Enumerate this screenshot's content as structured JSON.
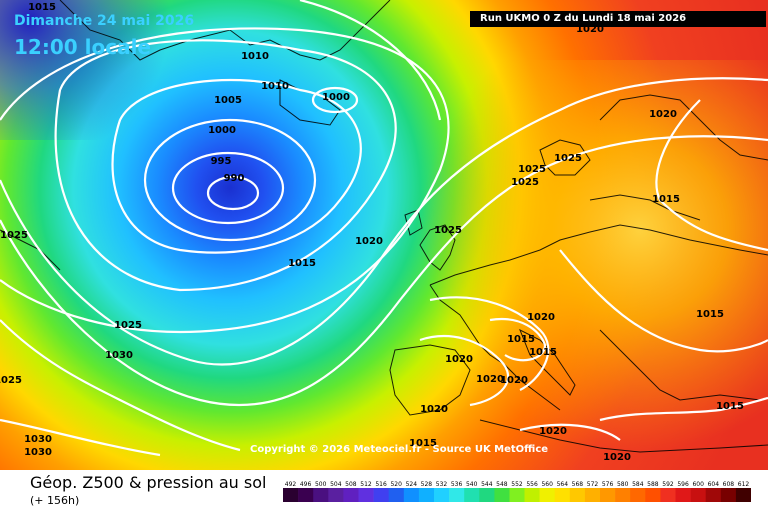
{
  "header": {
    "date": "Dimanche 24 mai 2026",
    "time": "12:00 locale",
    "run": "Run UKMO 0 Z du Lundi 18 mai 2026"
  },
  "copyright": "Copyright © 2026 Meteociel.fr - Source UK MetOffice",
  "footer": {
    "title": "Géop. Z500 & pression au sol",
    "subtitle": "(+ 156h)"
  },
  "scale": {
    "values": [
      492,
      496,
      500,
      504,
      508,
      512,
      516,
      520,
      524,
      528,
      532,
      536,
      540,
      544,
      548,
      552,
      556,
      560,
      564,
      568,
      572,
      576,
      580,
      584,
      588,
      592,
      596,
      600,
      604,
      608,
      612
    ],
    "colors": [
      "#2a0030",
      "#3a0050",
      "#4a1080",
      "#5a20a0",
      "#6020c0",
      "#6030e0",
      "#4040f0",
      "#2060f0",
      "#1090ff",
      "#10b0ff",
      "#20d0ff",
      "#30e8e8",
      "#20e0b0",
      "#20d880",
      "#40e040",
      "#80f020",
      "#c0f000",
      "#f0f000",
      "#ffe000",
      "#ffc800",
      "#ffb000",
      "#ff9800",
      "#ff8000",
      "#ff6800",
      "#ff5000",
      "#f03020",
      "#e01818",
      "#c81010",
      "#a00808",
      "#780000",
      "#400000"
    ]
  },
  "isobars": [
    {
      "label": "1015",
      "tone": "dark"
    },
    {
      "label": "1010",
      "tone": "dark"
    },
    {
      "label": "1010",
      "tone": "dark"
    },
    {
      "label": "1005",
      "tone": "dark"
    },
    {
      "label": "1000",
      "tone": "dark"
    },
    {
      "label": "1000",
      "tone": "dark"
    },
    {
      "label": "995",
      "tone": "dark"
    },
    {
      "label": "990",
      "tone": "dark"
    },
    {
      "label": "1025",
      "tone": "dark"
    },
    {
      "label": "1020",
      "tone": "dark"
    },
    {
      "label": "1015",
      "tone": "dark"
    },
    {
      "label": "1025",
      "tone": "dark"
    },
    {
      "label": "1030",
      "tone": "dark"
    },
    {
      "label": "1025",
      "tone": "dark"
    },
    {
      "label": "1030",
      "tone": "dark"
    },
    {
      "label": "1030",
      "tone": "dark"
    },
    {
      "label": "1025",
      "tone": "dark"
    },
    {
      "label": "1025",
      "tone": "dark"
    },
    {
      "label": "1025",
      "tone": "dark"
    },
    {
      "label": "1025",
      "tone": "dark"
    },
    {
      "label": "1020",
      "tone": "dark"
    },
    {
      "label": "1020",
      "tone": "dark"
    },
    {
      "label": "1015",
      "tone": "dark"
    },
    {
      "label": "1015",
      "tone": "dark"
    },
    {
      "label": "1020",
      "tone": "dark"
    },
    {
      "label": "1015",
      "tone": "dark"
    },
    {
      "label": "1015",
      "tone": "dark"
    },
    {
      "label": "1020",
      "tone": "dark"
    },
    {
      "label": "1020",
      "tone": "dark"
    },
    {
      "label": "1020",
      "tone": "dark"
    },
    {
      "label": "1020",
      "tone": "dark"
    },
    {
      "label": "1015",
      "tone": "dark"
    },
    {
      "label": "1015",
      "tone": "dark"
    },
    {
      "label": "1020",
      "tone": "dark"
    },
    {
      "label": "1020",
      "tone": "dark"
    },
    {
      "label": "1020",
      "tone": "dark"
    }
  ]
}
